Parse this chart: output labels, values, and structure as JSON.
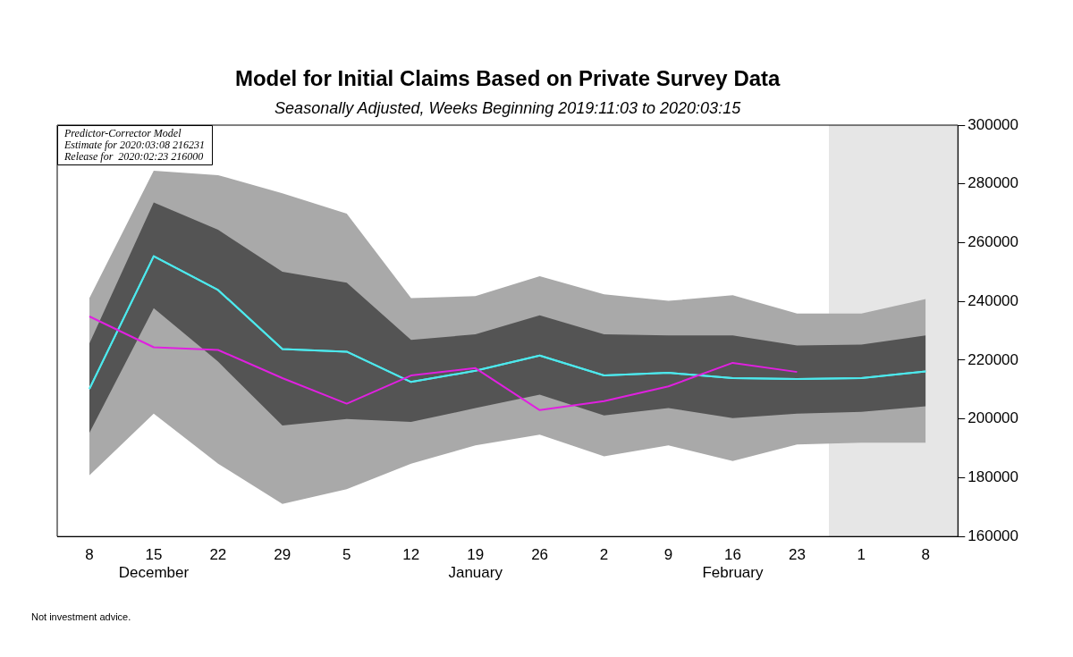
{
  "chart_data": {
    "type": "line",
    "title": "Model for Initial Claims Based on Private Survey Data",
    "subtitle": "Seasonally Adjusted, Weeks Beginning 2019:11:03 to 2020:03:15",
    "categories": [
      "8",
      "15\nDecember",
      "22",
      "29",
      "5",
      "12",
      "19\nJanuary",
      "26",
      "2",
      "9",
      "16\nFebruary",
      "23",
      "1",
      "8"
    ],
    "series": [
      {
        "type": "line",
        "color": "#4de8ec",
        "values": [
          210200,
          255400,
          243900,
          223800,
          222900,
          212600,
          216400,
          221600,
          214800,
          215700,
          213900,
          213600,
          213900,
          216200
        ],
        "lower": [
          180800,
          201800,
          184800,
          171100,
          176100,
          184800,
          191000,
          194700,
          187300,
          191000,
          185700,
          191300,
          191900,
          191900
        ],
        "upper": [
          241100,
          284500,
          283000,
          276800,
          269900,
          241100,
          241800,
          248600,
          242400,
          240200,
          242100,
          235900,
          235900,
          240800
        ]
      },
      {
        "type": "line",
        "color": "#4de8ec",
        "values": [
          210200,
          255400,
          243900,
          223800,
          222900,
          212600,
          216400,
          221600,
          214800,
          215700,
          213900,
          213600,
          213900,
          216200
        ],
        "lower": [
          195300,
          237700,
          219500,
          197800,
          200000,
          199000,
          203700,
          208300,
          201200,
          203700,
          200300,
          201800,
          202400,
          204300
        ],
        "upper": [
          225700,
          273700,
          264400,
          250100,
          246400,
          226900,
          228800,
          235300,
          228800,
          228400,
          228400,
          225000,
          225300,
          228400
        ]
      },
      {
        "type": "line",
        "color": "#e020e0",
        "values": [
          234900,
          224400,
          223500,
          213900,
          205200,
          214800,
          217300,
          203000,
          206100,
          211100,
          219100,
          216000,
          null,
          null
        ]
      }
    ],
    "ylim": [
      160000,
      300000
    ],
    "yticks": [
      160000,
      180000,
      200000,
      220000,
      240000,
      260000,
      280000,
      300000
    ],
    "marker": "none",
    "grid": false,
    "legend": false,
    "annotations": [
      "Predictor-Corrector Model",
      "Estimate for 2020:03:08 216231",
      "Release for  2020:02:23 216000",
      "Not investment advice."
    ]
  }
}
